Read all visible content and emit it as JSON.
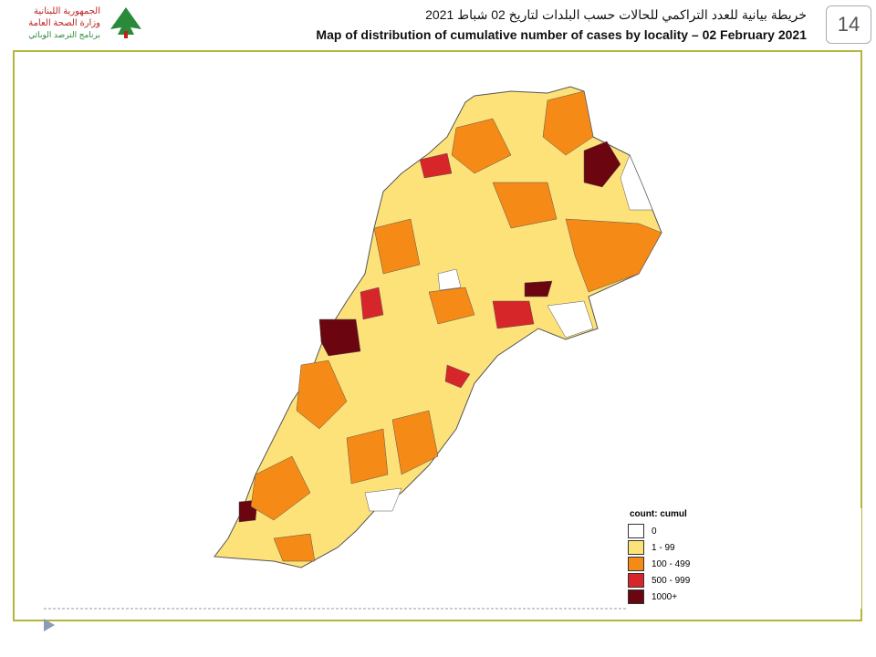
{
  "header": {
    "logo_lines": [
      "الجمهورية اللبنانية",
      "وزارة الصحة العامة",
      "برنامج الترصد الوبائي"
    ],
    "title_ar": "خريطة بيانية للعدد التراكمي للحالات حسب البلدات لتاريخ  02 شباط 2021",
    "title_en": "Map of distribution of cumulative number of cases by locality – 02 February 2021",
    "page_number": "14"
  },
  "legend": {
    "title": "count: cumul",
    "items": [
      {
        "label": "0",
        "color": "#ffffff"
      },
      {
        "label": "1 - 99",
        "color": "#fde27a"
      },
      {
        "label": "100 - 499",
        "color": "#f58a16"
      },
      {
        "label": "500 - 999",
        "color": "#d7262a"
      },
      {
        "label": "1000+",
        "color": "#6b0610"
      }
    ]
  }
}
